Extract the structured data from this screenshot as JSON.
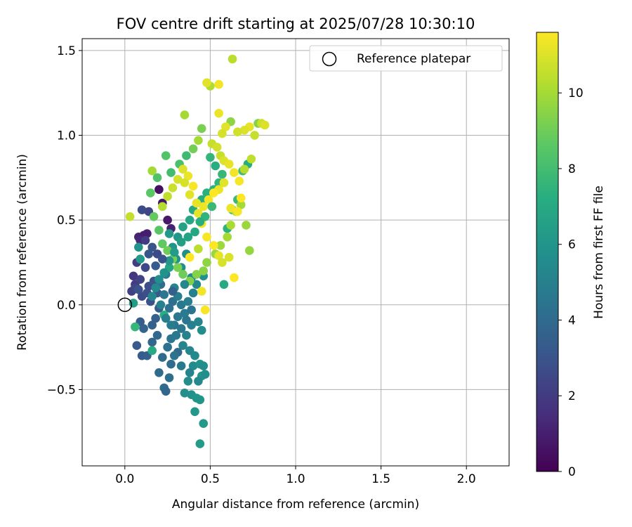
{
  "chart_data": {
    "type": "scatter",
    "title": "FOV centre drift starting at 2025/07/28 10:30:10",
    "xlabel": "Angular distance from reference (arcmin)",
    "ylabel": "Rotation from reference (arcmin)",
    "xlim": [
      -0.25,
      2.25
    ],
    "ylim": [
      -0.95,
      1.57
    ],
    "xticks": [
      0.0,
      0.5,
      1.0,
      1.5,
      2.0
    ],
    "xtick_labels": [
      "0.0",
      "0.5",
      "1.0",
      "1.5",
      "2.0"
    ],
    "yticks": [
      -0.5,
      0.0,
      0.5,
      1.0,
      1.5
    ],
    "ytick_labels": [
      "−0.5",
      "0.0",
      "0.5",
      "1.0",
      "1.5"
    ],
    "grid": true,
    "legend": {
      "placement": "top-right",
      "entries": [
        "Reference platepar"
      ]
    },
    "reference_point": {
      "label": "Reference platepar",
      "x": 0.0,
      "y": 0.0,
      "marker": "open-circle"
    },
    "colorbar": {
      "label": "Hours from first FF file",
      "colormap": "viridis",
      "range": [
        0,
        11.6
      ],
      "ticks": [
        0,
        2,
        4,
        6,
        8,
        10
      ],
      "tick_labels": [
        "0",
        "2",
        "4",
        "6",
        "8",
        "10"
      ]
    },
    "points": [
      [
        0.2,
        0.68,
        0.5
      ],
      [
        0.22,
        0.6,
        0.7
      ],
      [
        0.13,
        0.42,
        1.0
      ],
      [
        0.08,
        0.4,
        1.2
      ],
      [
        0.11,
        0.41,
        0.9
      ],
      [
        0.25,
        0.5,
        0.8
      ],
      [
        0.27,
        0.45,
        1.1
      ],
      [
        0.09,
        0.38,
        1.3
      ],
      [
        0.05,
        0.17,
        1.8
      ],
      [
        0.06,
        0.12,
        2.0
      ],
      [
        0.04,
        0.08,
        2.2
      ],
      [
        0.07,
        0.25,
        2.1
      ],
      [
        0.06,
        0.1,
        2.4
      ],
      [
        0.09,
        0.15,
        2.3
      ],
      [
        0.12,
        0.22,
        2.5
      ],
      [
        0.1,
        0.05,
        2.6
      ],
      [
        0.14,
        0.11,
        2.7
      ],
      [
        0.13,
        0.07,
        2.8
      ],
      [
        0.15,
        0.02,
        3.0
      ],
      [
        0.08,
        0.09,
        2.9
      ],
      [
        0.12,
        0.38,
        2.0
      ],
      [
        0.14,
        0.55,
        2.4
      ],
      [
        0.1,
        0.56,
        2.6
      ],
      [
        0.17,
        0.14,
        3.1
      ],
      [
        0.19,
        0.07,
        3.2
      ],
      [
        0.2,
        -0.02,
        3.3
      ],
      [
        0.18,
        -0.08,
        3.5
      ],
      [
        0.16,
        -0.12,
        3.6
      ],
      [
        0.11,
        -0.14,
        3.7
      ],
      [
        0.09,
        -0.1,
        3.4
      ],
      [
        0.07,
        -0.24,
        3.2
      ],
      [
        0.1,
        -0.3,
        3.3
      ],
      [
        0.13,
        -0.3,
        3.5
      ],
      [
        0.16,
        -0.22,
        3.8
      ],
      [
        0.19,
        -0.18,
        3.9
      ],
      [
        0.2,
        -0.4,
        4.0
      ],
      [
        0.23,
        -0.49,
        4.1
      ],
      [
        0.24,
        -0.51,
        3.8
      ],
      [
        0.26,
        -0.43,
        4.2
      ],
      [
        0.22,
        -0.31,
        4.0
      ],
      [
        0.25,
        -0.25,
        4.3
      ],
      [
        0.27,
        -0.2,
        4.5
      ],
      [
        0.29,
        -0.12,
        4.4
      ],
      [
        0.31,
        -0.07,
        4.6
      ],
      [
        0.28,
        0.02,
        4.2
      ],
      [
        0.26,
        -0.02,
        4.3
      ],
      [
        0.23,
        0.06,
        4.5
      ],
      [
        0.21,
        0.12,
        4.1
      ],
      [
        0.24,
        0.18,
        4.6
      ],
      [
        0.33,
        0.0,
        4.7
      ],
      [
        0.35,
        -0.05,
        4.8
      ],
      [
        0.37,
        0.02,
        4.9
      ],
      [
        0.39,
        -0.12,
        5.0
      ],
      [
        0.36,
        -0.18,
        5.1
      ],
      [
        0.34,
        -0.24,
        5.2
      ],
      [
        0.38,
        -0.27,
        5.3
      ],
      [
        0.41,
        -0.3,
        5.4
      ],
      [
        0.4,
        -0.36,
        5.5
      ],
      [
        0.37,
        -0.45,
        5.6
      ],
      [
        0.35,
        -0.52,
        5.7
      ],
      [
        0.39,
        -0.53,
        5.8
      ],
      [
        0.42,
        -0.55,
        5.9
      ],
      [
        0.44,
        -0.56,
        6.0
      ],
      [
        0.41,
        -0.63,
        6.1
      ],
      [
        0.46,
        -0.7,
        6.2
      ],
      [
        0.44,
        -0.82,
        6.3
      ],
      [
        0.45,
        -0.42,
        6.0
      ],
      [
        0.44,
        -0.35,
        5.9
      ],
      [
        0.45,
        -0.15,
        5.6
      ],
      [
        0.43,
        -0.1,
        5.2
      ],
      [
        0.4,
        0.07,
        5.0
      ],
      [
        0.42,
        0.12,
        5.4
      ],
      [
        0.46,
        0.17,
        5.8
      ],
      [
        0.39,
        0.16,
        5.6
      ],
      [
        0.33,
        0.22,
        5.5
      ],
      [
        0.36,
        0.3,
        5.7
      ],
      [
        0.3,
        0.27,
        5.9
      ],
      [
        0.28,
        0.34,
        6.0
      ],
      [
        0.31,
        0.4,
        6.1
      ],
      [
        0.26,
        0.42,
        6.2
      ],
      [
        0.08,
        0.34,
        6.0
      ],
      [
        0.09,
        0.27,
        6.2
      ],
      [
        0.05,
        0.01,
        6.4
      ],
      [
        0.06,
        -0.13,
        7.6
      ],
      [
        0.23,
        -0.06,
        7.2
      ],
      [
        0.16,
        -0.27,
        7.0
      ],
      [
        0.26,
        0.22,
        6.8
      ],
      [
        0.34,
        0.46,
        6.6
      ],
      [
        0.38,
        0.5,
        6.9
      ],
      [
        0.4,
        0.56,
        7.0
      ],
      [
        0.45,
        0.62,
        7.1
      ],
      [
        0.48,
        0.66,
        7.3
      ],
      [
        0.52,
        0.68,
        7.4
      ],
      [
        0.55,
        0.72,
        7.5
      ],
      [
        0.58,
        0.12,
        7.0
      ],
      [
        0.6,
        0.45,
        7.4
      ],
      [
        0.63,
        0.56,
        7.6
      ],
      [
        0.66,
        0.62,
        7.8
      ],
      [
        0.69,
        0.79,
        7.9
      ],
      [
        0.72,
        0.83,
        7.1
      ],
      [
        0.57,
        0.77,
        7.7
      ],
      [
        0.53,
        0.82,
        7.2
      ],
      [
        0.5,
        0.87,
        7.6
      ],
      [
        0.36,
        0.88,
        7.9
      ],
      [
        0.32,
        0.83,
        8.2
      ],
      [
        0.27,
        0.78,
        8.0
      ],
      [
        0.24,
        0.88,
        8.4
      ],
      [
        0.19,
        0.75,
        8.3
      ],
      [
        0.15,
        0.66,
        8.6
      ],
      [
        0.17,
        0.52,
        8.8
      ],
      [
        0.2,
        0.44,
        8.5
      ],
      [
        0.22,
        0.36,
        8.7
      ],
      [
        0.25,
        0.32,
        9.0
      ],
      [
        0.28,
        0.27,
        9.1
      ],
      [
        0.31,
        0.22,
        9.2
      ],
      [
        0.34,
        0.18,
        9.0
      ],
      [
        0.38,
        0.14,
        9.3
      ],
      [
        0.42,
        0.18,
        9.4
      ],
      [
        0.46,
        0.2,
        9.5
      ],
      [
        0.48,
        0.25,
        9.6
      ],
      [
        0.53,
        0.3,
        9.8
      ],
      [
        0.56,
        0.35,
        9.9
      ],
      [
        0.6,
        0.4,
        10.0
      ],
      [
        0.62,
        0.47,
        10.1
      ],
      [
        0.65,
        0.55,
        10.2
      ],
      [
        0.68,
        0.59,
        10.0
      ],
      [
        0.71,
        0.47,
        9.8
      ],
      [
        0.73,
        0.32,
        9.7
      ],
      [
        0.7,
        0.8,
        10.3
      ],
      [
        0.74,
        0.86,
        10.5
      ],
      [
        0.76,
        1.0,
        10.6
      ],
      [
        0.78,
        1.07,
        9.4
      ],
      [
        0.8,
        1.07,
        10.7
      ],
      [
        0.82,
        1.06,
        11.0
      ],
      [
        0.73,
        1.05,
        11.2
      ],
      [
        0.7,
        1.03,
        11.0
      ],
      [
        0.66,
        1.02,
        10.8
      ],
      [
        0.62,
        1.08,
        9.6
      ],
      [
        0.59,
        1.05,
        11.1
      ],
      [
        0.57,
        1.01,
        10.9
      ],
      [
        0.55,
        1.13,
        11.3
      ],
      [
        0.5,
        1.29,
        10.2
      ],
      [
        0.55,
        1.3,
        11.4
      ],
      [
        0.48,
        1.31,
        11.1
      ],
      [
        0.63,
        1.45,
        10.4
      ],
      [
        0.35,
        1.12,
        10.0
      ],
      [
        0.45,
        1.04,
        9.2
      ],
      [
        0.4,
        0.92,
        9.1
      ],
      [
        0.43,
        0.97,
        10.0
      ],
      [
        0.51,
        0.95,
        10.6
      ],
      [
        0.54,
        0.93,
        10.8
      ],
      [
        0.56,
        0.88,
        10.6
      ],
      [
        0.58,
        0.85,
        11.0
      ],
      [
        0.61,
        0.83,
        11.2
      ],
      [
        0.64,
        0.78,
        11.4
      ],
      [
        0.67,
        0.73,
        11.5
      ],
      [
        0.58,
        0.72,
        11.1
      ],
      [
        0.55,
        0.68,
        11.3
      ],
      [
        0.52,
        0.66,
        11.6
      ],
      [
        0.49,
        0.62,
        11.4
      ],
      [
        0.46,
        0.58,
        11.3
      ],
      [
        0.43,
        0.54,
        11.2
      ],
      [
        0.4,
        0.7,
        11.5
      ],
      [
        0.37,
        0.76,
        11.3
      ],
      [
        0.34,
        0.8,
        11.0
      ],
      [
        0.31,
        0.74,
        10.9
      ],
      [
        0.28,
        0.69,
        10.7
      ],
      [
        0.25,
        0.64,
        10.5
      ],
      [
        0.22,
        0.58,
        10.3
      ],
      [
        0.16,
        0.79,
        10.0
      ],
      [
        0.03,
        0.52,
        10.6
      ],
      [
        0.35,
        0.72,
        10.9
      ],
      [
        0.38,
        0.65,
        11.1
      ],
      [
        0.42,
        0.6,
        11.2
      ],
      [
        0.45,
        0.48,
        11.4
      ],
      [
        0.48,
        0.4,
        11.5
      ],
      [
        0.52,
        0.35,
        11.6
      ],
      [
        0.55,
        0.29,
        11.2
      ],
      [
        0.57,
        0.25,
        10.9
      ],
      [
        0.61,
        0.28,
        11.0
      ],
      [
        0.64,
        0.16,
        11.6
      ],
      [
        0.62,
        0.57,
        11.3
      ],
      [
        0.66,
        0.55,
        11.5
      ],
      [
        0.68,
        0.63,
        11.6
      ],
      [
        0.51,
        0.58,
        7.8
      ],
      [
        0.47,
        0.52,
        7.5
      ],
      [
        0.44,
        0.49,
        7.2
      ],
      [
        0.41,
        0.43,
        6.9
      ],
      [
        0.37,
        0.4,
        6.7
      ],
      [
        0.33,
        0.37,
        6.5
      ],
      [
        0.29,
        0.31,
        6.3
      ],
      [
        0.26,
        0.26,
        6.1
      ],
      [
        0.23,
        0.19,
        5.9
      ],
      [
        0.2,
        0.15,
        5.7
      ],
      [
        0.18,
        0.1,
        5.5
      ],
      [
        0.16,
        0.05,
        5.3
      ],
      [
        0.21,
        0.0,
        5.1
      ],
      [
        0.24,
        -0.08,
        4.9
      ],
      [
        0.27,
        -0.12,
        4.8
      ],
      [
        0.3,
        -0.18,
        4.7
      ],
      [
        0.33,
        -0.14,
        4.6
      ],
      [
        0.36,
        -0.09,
        4.5
      ],
      [
        0.39,
        -0.03,
        4.4
      ],
      [
        0.31,
        0.05,
        4.9
      ],
      [
        0.29,
        0.1,
        5.1
      ],
      [
        0.35,
        0.12,
        5.3
      ],
      [
        0.19,
        0.3,
        2.6
      ],
      [
        0.16,
        0.34,
        2.9
      ],
      [
        0.14,
        0.3,
        3.1
      ],
      [
        0.18,
        0.23,
        3.3
      ],
      [
        0.22,
        0.27,
        3.0
      ],
      [
        0.28,
        0.08,
        3.6
      ],
      [
        0.31,
        -0.28,
        3.9
      ],
      [
        0.27,
        -0.35,
        4.1
      ],
      [
        0.29,
        -0.3,
        4.4
      ],
      [
        0.33,
        -0.36,
        4.7
      ],
      [
        0.38,
        -0.4,
        5.1
      ],
      [
        0.43,
        -0.45,
        5.4
      ],
      [
        0.47,
        -0.41,
        5.7
      ],
      [
        0.46,
        -0.36,
        5.6
      ],
      [
        0.45,
        0.08,
        11.4
      ],
      [
        0.47,
        -0.03,
        11.5
      ],
      [
        0.38,
        0.28,
        11.6
      ],
      [
        0.43,
        0.33,
        10.4
      ]
    ]
  }
}
